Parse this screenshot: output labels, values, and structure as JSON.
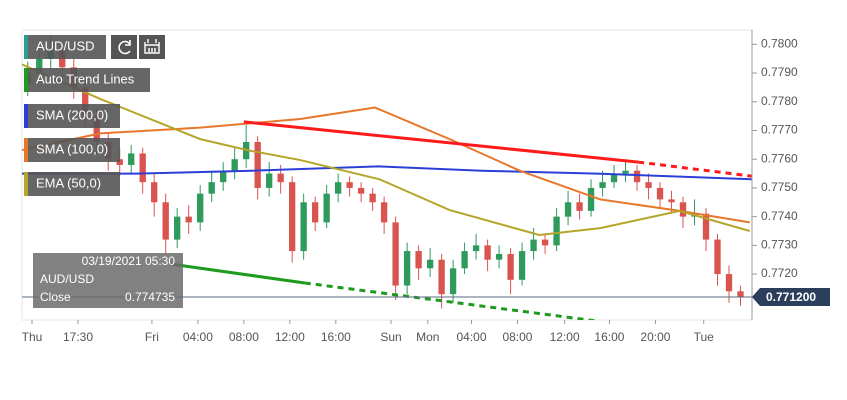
{
  "chart_data": {
    "type": "candlestick",
    "symbol": "AUD/USD",
    "trend_label": "Auto Trend Lines",
    "up_color": "#2e9a5c",
    "down_color": "#d9534f",
    "x": [
      0.5,
      1.5,
      2.5,
      3.5,
      4.5,
      5.5,
      6.5,
      7.5,
      8.5,
      9.5,
      10.5,
      11.5,
      12.5,
      13.5,
      14.5,
      15.5,
      16.5,
      17.5,
      18.5,
      19.5,
      20.5,
      21.5,
      22.5,
      23.5,
      24.5,
      25.5,
      26.5,
      27.5,
      28.5,
      29.5,
      30.5,
      31.5,
      32.5,
      33.5,
      34.5,
      35.5,
      36.5,
      37.5,
      38.5,
      39.5,
      40.5,
      41.5,
      42.5,
      43.5,
      44.5,
      45.5,
      46.5,
      47.5,
      48.5,
      49.5,
      50.5,
      51.5,
      52.5,
      53.5,
      54.5,
      55.5,
      56.5,
      57.5,
      58.5,
      59.5,
      60.5,
      61.5,
      62.5
    ],
    "open": [
      0.7786,
      0.779,
      0.7795,
      0.7798,
      0.7792,
      0.7785,
      0.7775,
      0.7766,
      0.776,
      0.7758,
      0.7762,
      0.7752,
      0.7745,
      0.7732,
      0.774,
      0.7738,
      0.7748,
      0.7752,
      0.7756,
      0.776,
      0.7766,
      0.775,
      0.7755,
      0.7752,
      0.7728,
      0.7745,
      0.7738,
      0.7748,
      0.7752,
      0.775,
      0.7748,
      0.7745,
      0.7738,
      0.7716,
      0.7728,
      0.7722,
      0.7725,
      0.7713,
      0.7722,
      0.7728,
      0.773,
      0.7725,
      0.7727,
      0.7718,
      0.7728,
      0.7732,
      0.773,
      0.774,
      0.7745,
      0.7742,
      0.775,
      0.7752,
      0.7755,
      0.7756,
      0.7752,
      0.775,
      0.7746,
      0.7745,
      0.774,
      0.7741,
      0.7732,
      0.772,
      0.7714
    ],
    "high": [
      0.7794,
      0.7799,
      0.7803,
      0.7801,
      0.7795,
      0.7788,
      0.7778,
      0.7769,
      0.7764,
      0.7765,
      0.7764,
      0.7755,
      0.7748,
      0.7743,
      0.7744,
      0.7751,
      0.7756,
      0.7759,
      0.7764,
      0.7772,
      0.7768,
      0.7759,
      0.7758,
      0.7754,
      0.7748,
      0.7747,
      0.7751,
      0.7755,
      0.7754,
      0.7752,
      0.775,
      0.7747,
      0.774,
      0.7731,
      0.773,
      0.7729,
      0.7727,
      0.7725,
      0.7731,
      0.7734,
      0.7732,
      0.773,
      0.7729,
      0.7731,
      0.7736,
      0.7734,
      0.7743,
      0.7749,
      0.7748,
      0.7753,
      0.7756,
      0.7758,
      0.776,
      0.7758,
      0.7755,
      0.7752,
      0.7749,
      0.7747,
      0.7746,
      0.7743,
      0.7734,
      0.7723,
      0.7716
    ],
    "low": [
      0.7782,
      0.7787,
      0.7791,
      0.7788,
      0.7781,
      0.7771,
      0.7762,
      0.7756,
      0.7754,
      0.7755,
      0.7748,
      0.774,
      0.7727,
      0.7729,
      0.7734,
      0.7735,
      0.7745,
      0.7749,
      0.7753,
      0.7757,
      0.7746,
      0.7747,
      0.7748,
      0.7724,
      0.7725,
      0.7735,
      0.7736,
      0.7745,
      0.7747,
      0.7745,
      0.7742,
      0.7734,
      0.7711,
      0.7713,
      0.7718,
      0.7719,
      0.7708,
      0.771,
      0.772,
      0.7725,
      0.7721,
      0.7722,
      0.7713,
      0.7716,
      0.7725,
      0.7727,
      0.7728,
      0.7737,
      0.7739,
      0.774,
      0.7747,
      0.775,
      0.7752,
      0.7749,
      0.7746,
      0.7743,
      0.7741,
      0.7736,
      0.7737,
      0.7728,
      0.7716,
      0.771,
      0.7709
    ],
    "close": [
      0.779,
      0.7795,
      0.7798,
      0.7792,
      0.7785,
      0.7775,
      0.7766,
      0.776,
      0.7758,
      0.7762,
      0.7752,
      0.7745,
      0.7732,
      0.774,
      0.7738,
      0.7748,
      0.7752,
      0.7756,
      0.776,
      0.7766,
      0.775,
      0.7755,
      0.7752,
      0.7728,
      0.7745,
      0.7738,
      0.7748,
      0.7752,
      0.775,
      0.7748,
      0.7745,
      0.7738,
      0.7716,
      0.7728,
      0.7722,
      0.7725,
      0.7713,
      0.7722,
      0.7728,
      0.773,
      0.7725,
      0.7727,
      0.7718,
      0.7728,
      0.7732,
      0.773,
      0.774,
      0.7745,
      0.7742,
      0.775,
      0.7752,
      0.7755,
      0.7756,
      0.7752,
      0.775,
      0.7746,
      0.7745,
      0.774,
      0.7741,
      0.7732,
      0.772,
      0.7714,
      0.7712
    ],
    "series": [
      {
        "name": "SMA (200,0)",
        "color": "#2b3fd6",
        "x": [
          0,
          10,
          20,
          31,
          40,
          50,
          63.5
        ],
        "values": [
          0.7755,
          0.7755,
          0.7756,
          0.77575,
          0.7756,
          0.7755,
          0.7753
        ]
      },
      {
        "name": "SMA (100,0)",
        "color": "#e8762b",
        "x": [
          0,
          6.8,
          15.5,
          24.2,
          30.7,
          37.2,
          43.3,
          50.3,
          57.2,
          63.3
        ],
        "values": [
          0.77632,
          0.7769,
          0.7771,
          0.7774,
          0.7778,
          0.7767,
          0.7756,
          0.7746,
          0.7742,
          0.7738
        ]
      },
      {
        "name": "EMA (50,0)",
        "color": "#b5a52a",
        "x": [
          0,
          6.8,
          15.5,
          19.8,
          24.2,
          31.1,
          37.2,
          45,
          50.3,
          57.2,
          63.3
        ],
        "values": [
          0.7793,
          0.7781,
          0.7767,
          0.7763,
          0.77597,
          0.7753,
          0.77423,
          0.77336,
          0.7736,
          0.7742,
          0.7735
        ]
      }
    ],
    "trend_lines": [
      {
        "color": "#ff1a1a",
        "style": "solid",
        "x": [
          19.3,
          53.6
        ],
        "values": [
          0.7773,
          0.7759
        ]
      },
      {
        "color": "#ff1a1a",
        "style": "dashed",
        "x": [
          53.6,
          63.5
        ],
        "values": [
          0.7759,
          0.77541
        ]
      },
      {
        "color": "#1e9a1e",
        "style": "solid",
        "x": [
          12.9,
          24.6
        ],
        "values": [
          0.77235,
          0.77169
        ]
      },
      {
        "color": "#1e9a1e",
        "style": "dashed",
        "x": [
          24.6,
          52
        ],
        "values": [
          0.77169,
          0.77026
        ]
      }
    ],
    "xlim": [
      0,
      63.5
    ],
    "ylim": [
      0.7704,
      0.7805
    ],
    "xticks": [
      {
        "value": 0.87,
        "label": "Thu"
      },
      {
        "value": 4.87,
        "label": "17:30"
      },
      {
        "value": 11.3,
        "label": "Fri"
      },
      {
        "value": 15.3,
        "label": "04:00"
      },
      {
        "value": 19.3,
        "label": "08:00"
      },
      {
        "value": 23.3,
        "label": "12:00"
      },
      {
        "value": 27.3,
        "label": "16:00"
      },
      {
        "value": 32.1,
        "label": "Sun"
      },
      {
        "value": 35.3,
        "label": "Mon"
      },
      {
        "value": 39.1,
        "label": "04:00"
      },
      {
        "value": 43.1,
        "label": "08:00"
      },
      {
        "value": 47.2,
        "label": "12:00"
      },
      {
        "value": 51.1,
        "label": "16:00"
      },
      {
        "value": 55.1,
        "label": "20:00"
      },
      {
        "value": 59.3,
        "label": "Tue"
      }
    ],
    "yticks": [
      {
        "value": 0.78,
        "label": "0.7800"
      },
      {
        "value": 0.779,
        "label": "0.7790"
      },
      {
        "value": 0.778,
        "label": "0.7780"
      },
      {
        "value": 0.777,
        "label": "0.7770"
      },
      {
        "value": 0.776,
        "label": "0.7760"
      },
      {
        "value": 0.775,
        "label": "0.7750"
      },
      {
        "value": 0.774,
        "label": "0.7740"
      },
      {
        "value": 0.773,
        "label": "0.7730"
      },
      {
        "value": 0.772,
        "label": "0.7720"
      }
    ],
    "last_price": {
      "value": 0.7712,
      "label": "0.771200"
    },
    "info": {
      "date": "03/19/2021 05:30",
      "symbol": "AUD/USD",
      "field": "Close",
      "value": 0.774735
    }
  }
}
